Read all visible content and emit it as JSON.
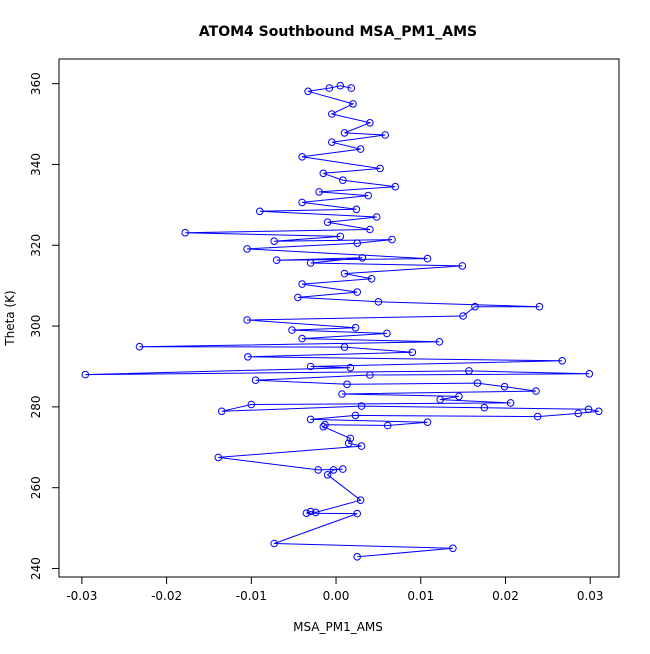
{
  "chart_data": {
    "type": "line",
    "title": "ATOM4 Southbound MSA_PM1_AMS",
    "xlabel": "MSA_PM1_AMS",
    "ylabel": "Theta (K)",
    "xlim": [
      -0.0327,
      0.0334
    ],
    "ylim": [
      237.9,
      366.1
    ],
    "x_ticks": [
      -0.03,
      -0.02,
      -0.01,
      0.0,
      0.01,
      0.02,
      0.03
    ],
    "x_tick_labels": [
      "-0.03",
      "-0.02",
      "-0.01",
      "0.00",
      "0.01",
      "0.02",
      "0.03"
    ],
    "y_ticks": [
      240,
      260,
      280,
      300,
      320,
      340,
      360
    ],
    "y_tick_labels": [
      "240",
      "260",
      "280",
      "300",
      "320",
      "340",
      "360"
    ],
    "marker": "open-circle",
    "color": "#0000ff",
    "series": [
      {
        "name": "MSA_PM1_AMS",
        "points": [
          [
            0.0025,
            242.9
          ],
          [
            0.0138,
            245.0
          ],
          [
            -0.0073,
            246.2
          ],
          [
            0.0025,
            253.6
          ],
          [
            -0.0035,
            253.7
          ],
          [
            -0.003,
            254.1
          ],
          [
            -0.0024,
            253.9
          ],
          [
            0.0029,
            256.9
          ],
          [
            -0.001,
            263.2
          ],
          [
            -0.0003,
            264.4
          ],
          [
            0.0008,
            264.6
          ],
          [
            -0.0021,
            264.4
          ],
          [
            -0.0139,
            267.5
          ],
          [
            0.003,
            270.3
          ],
          [
            0.0015,
            271.0
          ],
          [
            0.0017,
            272.2
          ],
          [
            -0.0015,
            275.1
          ],
          [
            -0.0013,
            275.6
          ],
          [
            0.0061,
            275.4
          ],
          [
            0.0108,
            276.2
          ],
          [
            -0.003,
            276.9
          ],
          [
            0.0023,
            277.9
          ],
          [
            0.0238,
            277.6
          ],
          [
            0.0286,
            278.4
          ],
          [
            0.031,
            278.9
          ],
          [
            0.0298,
            279.4
          ],
          [
            0.0175,
            279.8
          ],
          [
            0.003,
            280.2
          ],
          [
            -0.0135,
            278.9
          ],
          [
            -0.01,
            280.6
          ],
          [
            0.0206,
            281.0
          ],
          [
            0.0123,
            281.8
          ],
          [
            0.0145,
            282.6
          ],
          [
            0.0007,
            283.2
          ],
          [
            0.0236,
            283.9
          ],
          [
            0.0199,
            285.0
          ],
          [
            0.0167,
            285.9
          ],
          [
            0.0013,
            285.6
          ],
          [
            -0.0095,
            286.6
          ],
          [
            0.004,
            287.9
          ],
          [
            0.0299,
            288.2
          ],
          [
            0.0157,
            288.9
          ],
          [
            -0.0296,
            288.0
          ],
          [
            0.0017,
            289.7
          ],
          [
            -0.003,
            290.0
          ],
          [
            0.0267,
            291.4
          ],
          [
            -0.0104,
            292.4
          ],
          [
            0.009,
            293.5
          ],
          [
            0.001,
            294.8
          ],
          [
            -0.0232,
            294.9
          ],
          [
            0.0122,
            296.1
          ],
          [
            -0.004,
            296.9
          ],
          [
            0.006,
            298.2
          ],
          [
            -0.0052,
            299.0
          ],
          [
            0.0023,
            299.6
          ],
          [
            -0.0105,
            301.5
          ],
          [
            0.015,
            302.5
          ],
          [
            0.0164,
            304.8
          ],
          [
            0.024,
            304.8
          ],
          [
            0.005,
            306.0
          ],
          [
            -0.0045,
            307.1
          ],
          [
            0.0025,
            308.4
          ],
          [
            -0.004,
            310.4
          ],
          [
            0.0042,
            311.7
          ],
          [
            0.001,
            313.0
          ],
          [
            0.0149,
            314.9
          ],
          [
            -0.003,
            315.6
          ],
          [
            0.0031,
            316.9
          ],
          [
            -0.007,
            316.3
          ],
          [
            0.0108,
            316.7
          ],
          [
            -0.0105,
            319.1
          ],
          [
            0.0025,
            320.5
          ],
          [
            0.0066,
            321.4
          ],
          [
            -0.0073,
            321.0
          ],
          [
            0.0005,
            322.2
          ],
          [
            -0.0178,
            323.1
          ],
          [
            0.004,
            323.9
          ],
          [
            -0.001,
            325.7
          ],
          [
            0.0048,
            327.0
          ],
          [
            -0.009,
            328.4
          ],
          [
            0.0024,
            328.9
          ],
          [
            -0.004,
            330.6
          ],
          [
            0.0038,
            332.3
          ],
          [
            -0.002,
            333.2
          ],
          [
            0.007,
            334.5
          ],
          [
            0.0008,
            336.1
          ],
          [
            -0.0015,
            337.8
          ],
          [
            0.0052,
            339.0
          ],
          [
            -0.004,
            341.9
          ],
          [
            0.0029,
            343.8
          ],
          [
            -0.0005,
            345.5
          ],
          [
            0.0058,
            347.3
          ],
          [
            0.001,
            347.8
          ],
          [
            0.004,
            350.3
          ],
          [
            -0.0005,
            352.5
          ],
          [
            0.002,
            355.0
          ],
          [
            -0.0033,
            358.1
          ],
          [
            -0.0008,
            358.9
          ],
          [
            0.0005,
            359.5
          ],
          [
            0.0018,
            358.9
          ]
        ]
      }
    ]
  }
}
